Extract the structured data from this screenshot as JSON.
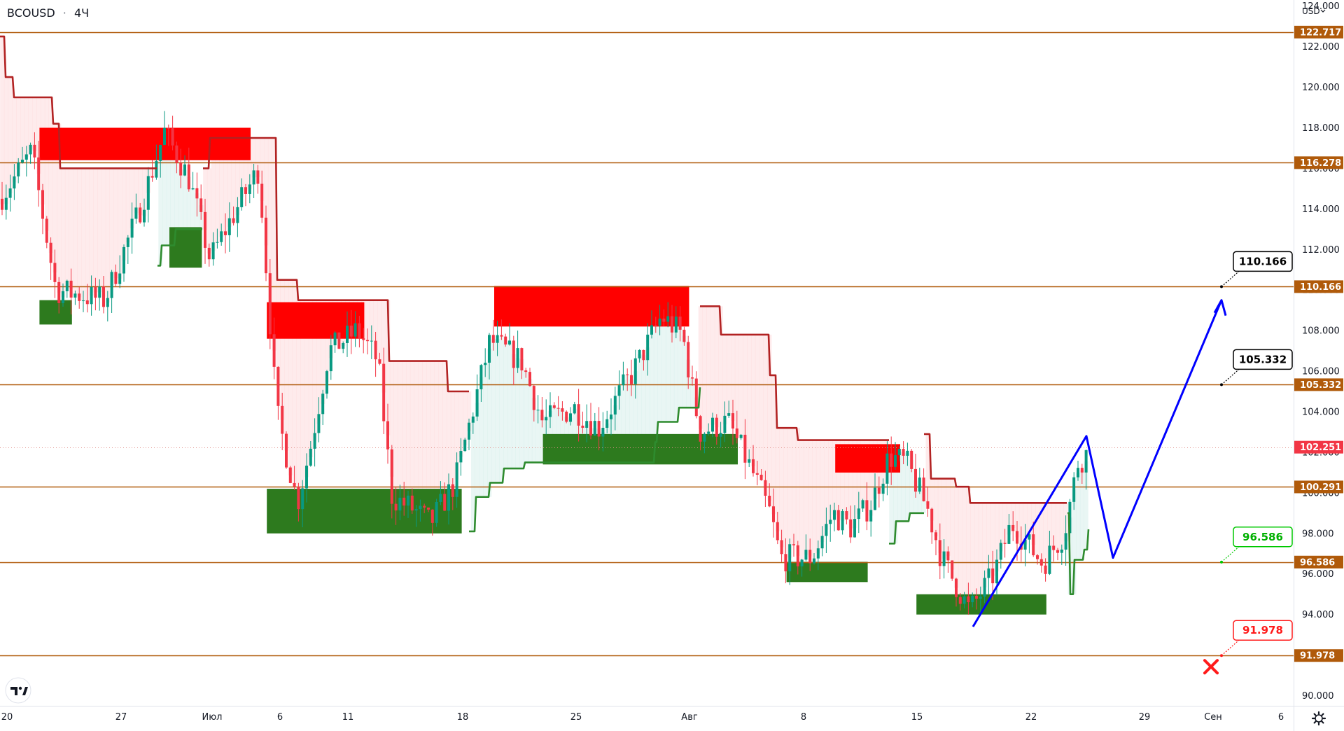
{
  "header": {
    "symbol": "BCOUSD",
    "separator": "·",
    "interval": "4Ч"
  },
  "currency_menu": {
    "label": "USD"
  },
  "chart_data": {
    "type": "candlestick",
    "ylim": [
      89.5,
      124.3
    ],
    "y_ticks": [
      "90.000",
      "92.000",
      "94.000",
      "96.000",
      "98.000",
      "100.000",
      "102.000",
      "104.000",
      "106.000",
      "108.000",
      "110.000",
      "112.000",
      "114.000",
      "116.000",
      "118.000",
      "120.000",
      "122.000",
      "124.000"
    ],
    "x_ticks": [
      "20",
      "27",
      "Июл",
      "6",
      "11",
      "18",
      "25",
      "Авг",
      "8",
      "15",
      "22",
      "29",
      "Сен",
      "6"
    ],
    "current_price": {
      "value": 102.251,
      "label": "102.251"
    },
    "levels": [
      {
        "value": 122.717,
        "label": "122.717"
      },
      {
        "value": 116.278,
        "label": "116.278"
      },
      {
        "value": 110.166,
        "label": "110.166"
      },
      {
        "value": 105.332,
        "label": "105.332"
      },
      {
        "value": 100.291,
        "label": "100.291"
      },
      {
        "value": 96.586,
        "label": "96.586"
      },
      {
        "value": 91.978,
        "label": "91.978"
      }
    ],
    "callouts": [
      {
        "value": 110.166,
        "label": "110.166",
        "color": "#000000"
      },
      {
        "value": 105.332,
        "label": "105.332",
        "color": "#000000"
      },
      {
        "value": 96.586,
        "label": "96.586",
        "color": "#00c800"
      },
      {
        "value": 91.978,
        "label": "91.978",
        "color": "#ff1a1a"
      }
    ],
    "supply_zones": [
      {
        "from": "Jun 22",
        "to": "Jul 5",
        "top": 118.0,
        "bottom": 116.4
      },
      {
        "from": "Jul 6",
        "to": "Jul 12",
        "top": 109.4,
        "bottom": 107.6
      },
      {
        "from": "Jul 20",
        "to": "Aug 1",
        "top": 110.2,
        "bottom": 108.2
      },
      {
        "from": "Aug 10",
        "to": "Aug 14",
        "top": 102.4,
        "bottom": 101.0
      }
    ],
    "demand_zones": [
      {
        "from": "Jun 22",
        "to": "Jun 24",
        "top": 109.5,
        "bottom": 108.3
      },
      {
        "from": "Jun 30",
        "to": "Jul 2",
        "top": 113.1,
        "bottom": 111.1
      },
      {
        "from": "Jul 6",
        "to": "Jul 18",
        "top": 100.2,
        "bottom": 98.0
      },
      {
        "from": "Jul 23",
        "to": "Aug 4",
        "top": 102.9,
        "bottom": 101.4
      },
      {
        "from": "Aug 7",
        "to": "Aug 12",
        "top": 96.6,
        "bottom": 95.6
      },
      {
        "from": "Aug 15",
        "to": "Aug 23",
        "top": 95.0,
        "bottom": 94.0
      }
    ],
    "projection_path": [
      [
        93.4
      ],
      [
        102.8
      ],
      [
        96.8
      ],
      [
        109.5
      ]
    ],
    "colors": {
      "up": "#089981",
      "down": "#f23645",
      "supply": "#ff0000",
      "demand": "#2d7a1e",
      "level": "#b05a0a",
      "trail_down": "#b22222",
      "trail_up": "#2e8b2e",
      "projection": "#0000ff",
      "price_tag": "#b05a0a"
    }
  },
  "icons": {
    "logo": "tradingview-logo-icon",
    "settings": "gear-icon",
    "target_fail": "x-mark-icon"
  }
}
